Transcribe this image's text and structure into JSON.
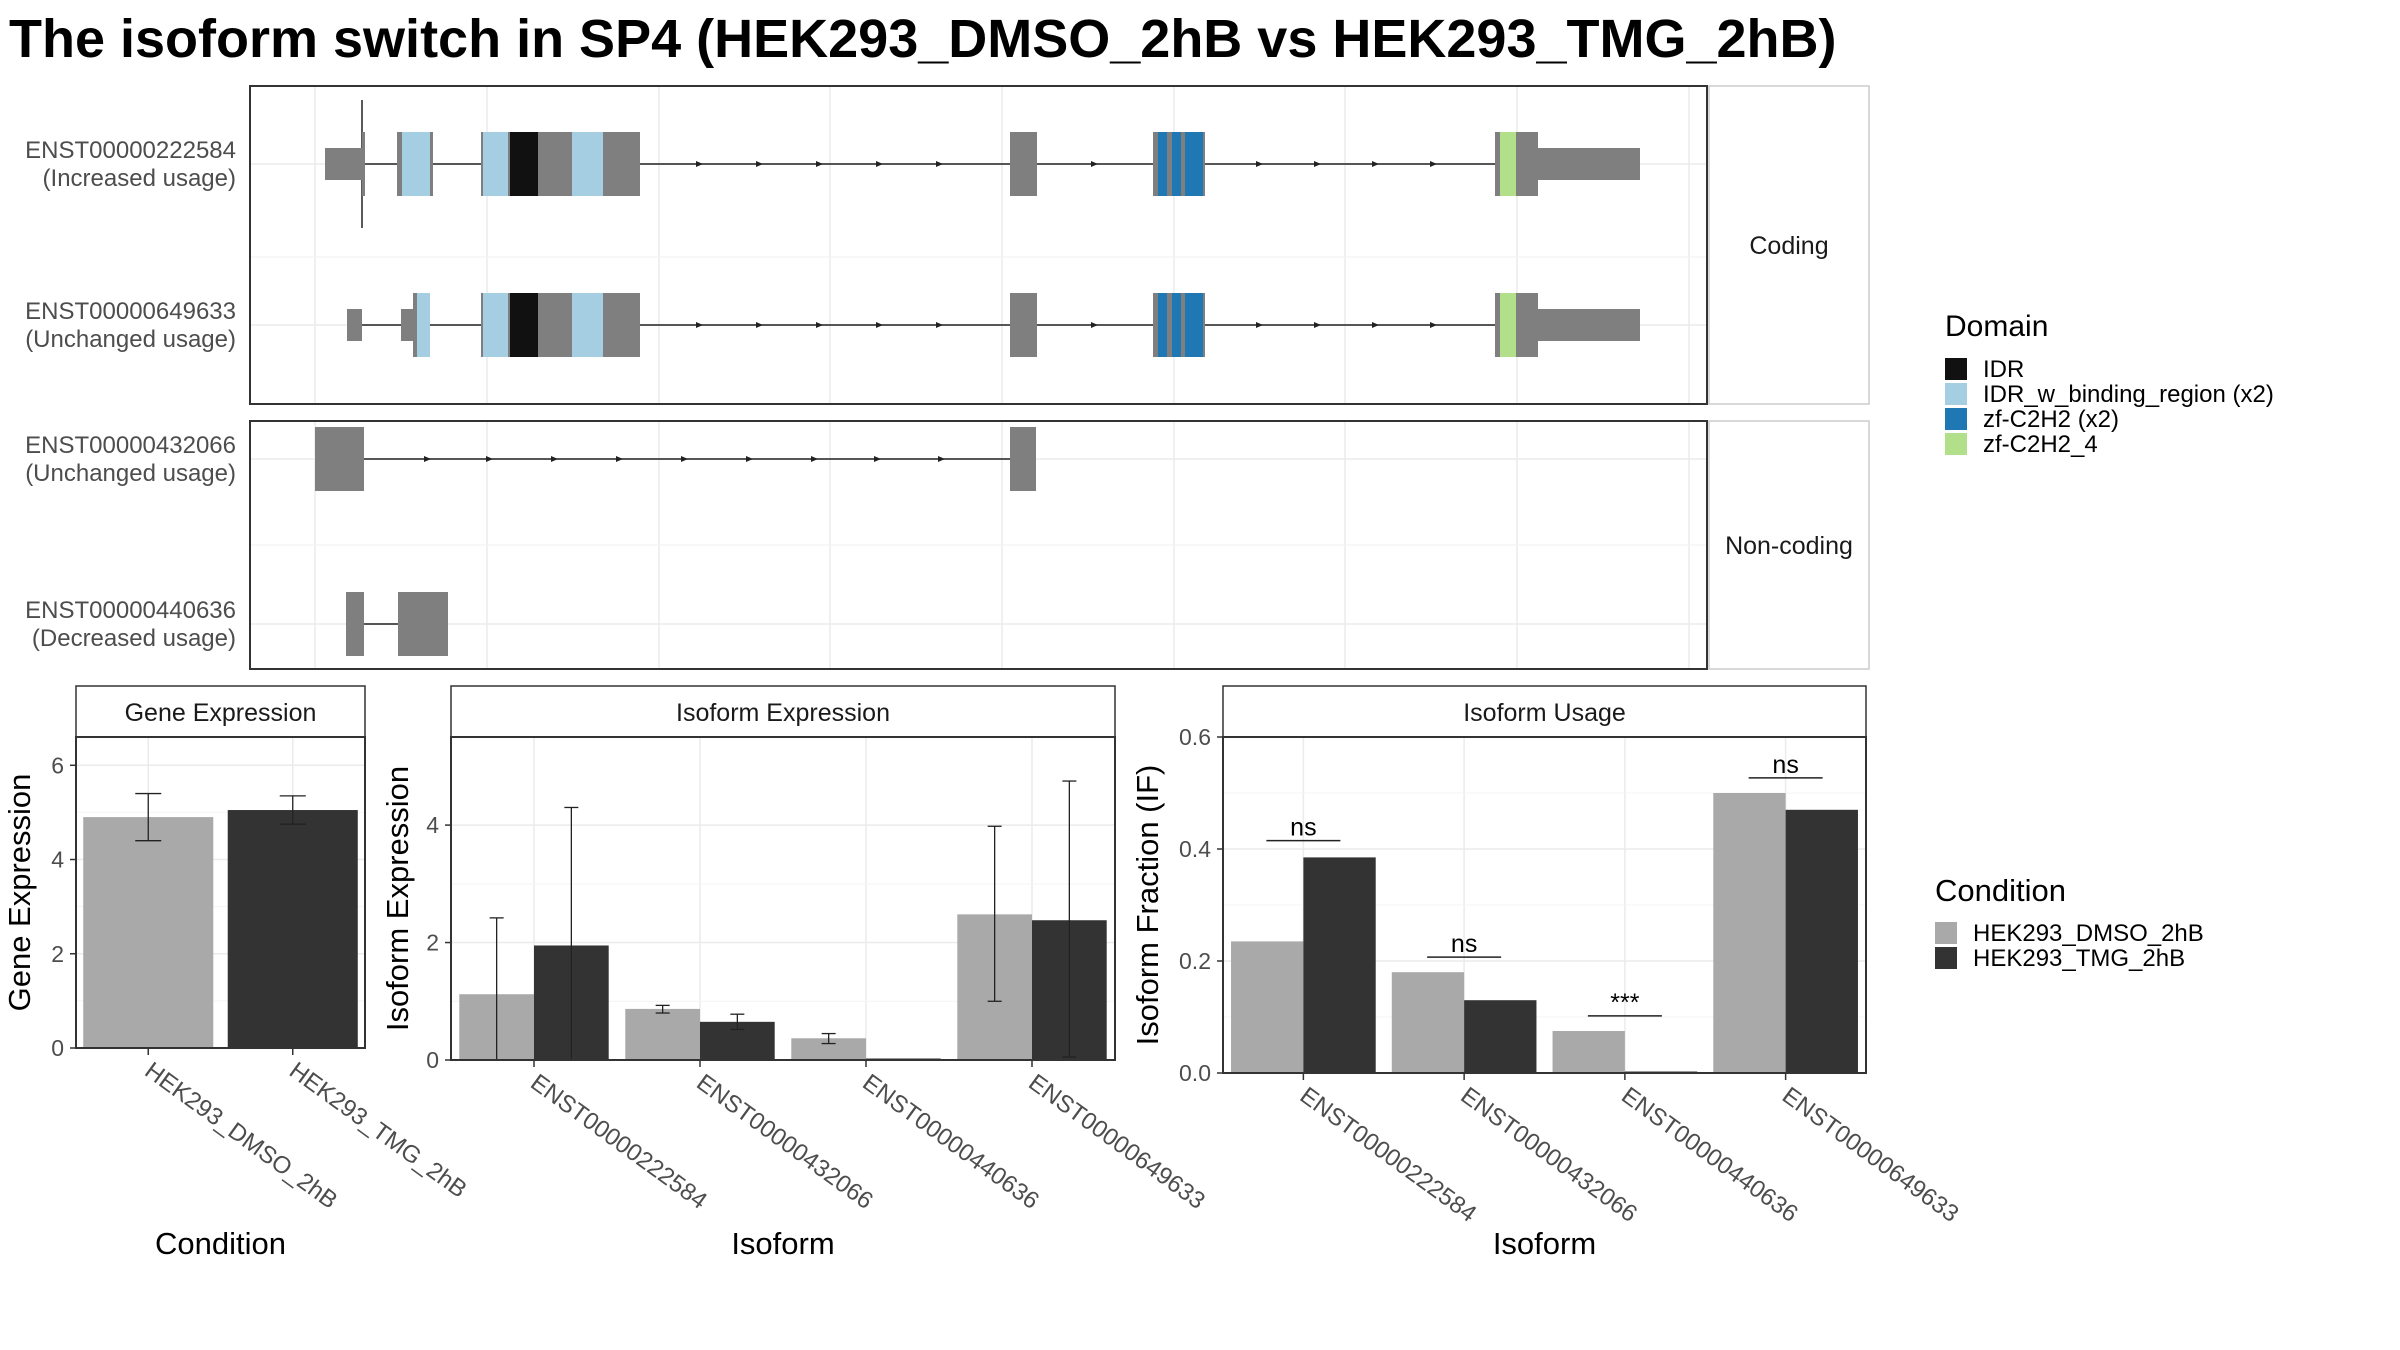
{
  "title": "The isoform switch in SP4 (HEK293_DMSO_2hB vs HEK293_TMG_2hB)",
  "colors": {
    "exon": "#7f7f7f",
    "IDR": "#111111",
    "IDR_w_binding_region": "#a6cee3",
    "zf_C2H2": "#1f78b4",
    "zf_C2H2_4": "#b2df8a",
    "dmso": "#a9a9a9",
    "tmg": "#333333"
  },
  "structure": {
    "groups": [
      {
        "label": "Coding",
        "transcripts": [
          0,
          1
        ]
      },
      {
        "label": "Non-coding",
        "transcripts": [
          2,
          3
        ]
      }
    ],
    "transcripts": [
      {
        "id": "ENST00000222584",
        "usage": "(Increased usage)"
      },
      {
        "id": "ENST00000649633",
        "usage": "(Unchanged usage)"
      },
      {
        "id": "ENST00000432066",
        "usage": "(Unchanged usage)"
      },
      {
        "id": "ENST00000440636",
        "usage": "(Decreased usage)"
      }
    ],
    "legend": {
      "title": "Domain",
      "items": [
        {
          "label": "IDR",
          "color_key": "IDR"
        },
        {
          "label": "IDR_w_binding_region (x2)",
          "color_key": "IDR_w_binding_region"
        },
        {
          "label": "zf-C2H2 (x2)",
          "color_key": "zf_C2H2"
        },
        {
          "label": "zf-C2H2_4",
          "color_key": "zf_C2H2_4"
        }
      ]
    }
  },
  "chart_data": [
    {
      "type": "bar",
      "title": "Gene Expression",
      "xlabel": "Condition",
      "ylabel": "Gene Expression",
      "ylim": [
        0,
        6.6
      ],
      "yticks": [
        0,
        2,
        4,
        6
      ],
      "categories": [
        "HEK293_DMSO_2hB",
        "HEK293_TMG_2hB"
      ],
      "values": [
        4.9,
        5.05
      ],
      "errors": [
        [
          4.4,
          5.4
        ],
        [
          4.75,
          5.35
        ]
      ]
    },
    {
      "type": "bar",
      "title": "Isoform Expression",
      "xlabel": "Isoform",
      "ylabel": "Isoform Expression",
      "ylim": [
        0,
        5.5
      ],
      "yticks": [
        0,
        2,
        4
      ],
      "categories": [
        "ENST00000222584",
        "ENST00000432066",
        "ENST00000440636",
        "ENST00000649633"
      ],
      "series": [
        {
          "name": "HEK293_DMSO_2hB",
          "values": [
            1.12,
            0.87,
            0.37,
            2.48
          ],
          "errors": [
            [
              0,
              2.42
            ],
            [
              0.8,
              0.93
            ],
            [
              0.28,
              0.45
            ],
            [
              1.0,
              3.98
            ]
          ]
        },
        {
          "name": "HEK293_TMG_2hB",
          "values": [
            1.95,
            0.65,
            0.0,
            2.38
          ],
          "errors": [
            [
              0,
              4.3
            ],
            [
              0.52,
              0.78
            ],
            [
              0,
              0
            ],
            [
              0.05,
              4.75
            ]
          ]
        }
      ]
    },
    {
      "type": "bar",
      "title": "Isoform Usage",
      "xlabel": "Isoform",
      "ylabel": "Isoform Fraction (IF)",
      "ylim": [
        0,
        0.6
      ],
      "yticks": [
        0.0,
        0.2,
        0.4,
        0.6
      ],
      "ytick_labels": [
        "0.0",
        "0.2",
        "0.4",
        "0.6"
      ],
      "categories": [
        "ENST00000222584",
        "ENST00000432066",
        "ENST00000440636",
        "ENST00000649633"
      ],
      "series": [
        {
          "name": "HEK293_DMSO_2hB",
          "values": [
            0.235,
            0.18,
            0.075,
            0.5
          ]
        },
        {
          "name": "HEK293_TMG_2hB",
          "values": [
            0.385,
            0.13,
            0.0,
            0.47
          ]
        }
      ],
      "significance": [
        "ns",
        "ns",
        "***",
        "ns"
      ],
      "significance_y": [
        0.415,
        0.207,
        0.102,
        0.527
      ]
    }
  ],
  "condition_legend": {
    "title": "Condition",
    "items": [
      {
        "label": "HEK293_DMSO_2hB",
        "color_key": "dmso"
      },
      {
        "label": "HEK293_TMG_2hB",
        "color_key": "tmg"
      }
    ]
  }
}
